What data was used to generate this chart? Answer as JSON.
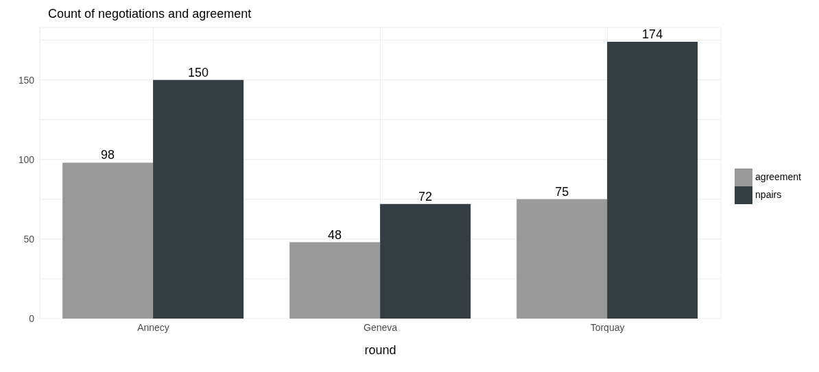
{
  "chart_data": {
    "type": "bar",
    "title": "Count of negotiations and agreement",
    "xlabel": "round",
    "categories": [
      "Annecy",
      "Geneva",
      "Torquay"
    ],
    "series": [
      {
        "name": "agreement",
        "color": "#999999",
        "values": [
          98,
          48,
          75
        ]
      },
      {
        "name": "npairs",
        "color": "#343d41",
        "values": [
          150,
          72,
          174
        ]
      }
    ],
    "ylim": [
      0,
      183
    ],
    "yticks": [
      0,
      {
        "value": 25,
        "label": null
      },
      50,
      {
        "value": 75,
        "label": null
      },
      100,
      {
        "value": 125,
        "label": null
      },
      150,
      {
        "value": 175,
        "label": null
      }
    ],
    "grid": true,
    "legend": "right",
    "data_labels": true
  }
}
